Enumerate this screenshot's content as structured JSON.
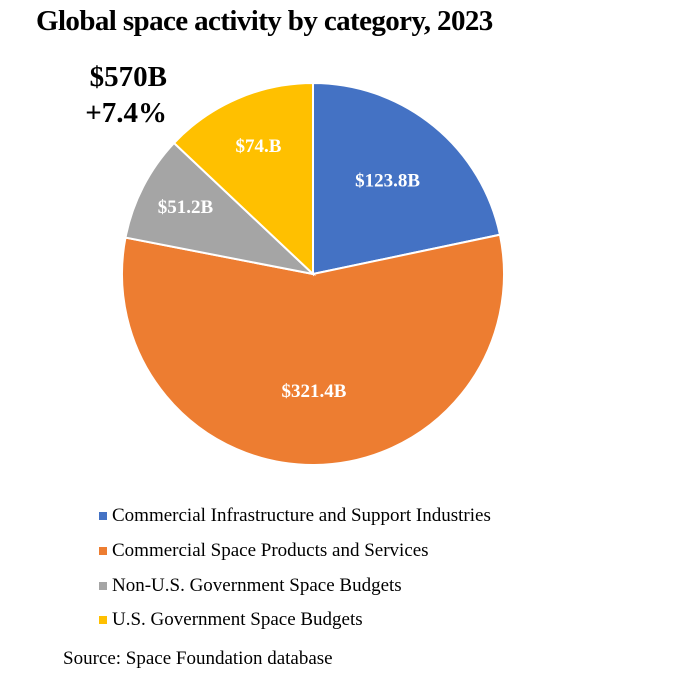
{
  "chart_data": {
    "type": "pie",
    "title": "Global space activity by category, 2023",
    "annotations": {
      "total": "$570B",
      "growth": "+7.4%"
    },
    "start_angle": "12 o'clock",
    "direction": "clockwise",
    "slices": [
      {
        "name": "Commercial Infrastructure and Support Industries",
        "value": 123.8,
        "label": "$123.8B",
        "color": "#4472C4"
      },
      {
        "name": "Commercial Space Products and Services",
        "value": 321.4,
        "label": "$321.4B",
        "color": "#ED7D31"
      },
      {
        "name": "Non-U.S. Government Space Budgets",
        "value": 51.2,
        "label": "$51.2B",
        "color": "#A5A5A5"
      },
      {
        "name": "U.S. Government Space Budgets",
        "value": 74.0,
        "label": "$74.B",
        "color": "#FFC000"
      }
    ],
    "legend_position": "bottom-left",
    "source": "Source: Space Foundation database"
  }
}
